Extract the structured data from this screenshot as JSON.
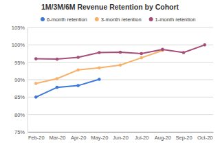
{
  "chart_data": {
    "type": "line",
    "title": "1M/3M/6M Revenue Retention by Cohort",
    "categories": [
      "Feb-20",
      "Mar-20",
      "Apr-20",
      "May-20",
      "Jun-20",
      "Jul-20",
      "Aug-20",
      "Sep-20",
      "Oct-20"
    ],
    "series": [
      {
        "name": "6-month retention",
        "color": "#3c78d8",
        "marker": "circle",
        "values": [
          85,
          87.8,
          88.3,
          90.1,
          null,
          null,
          null,
          null,
          null
        ]
      },
      {
        "name": "3-month retention",
        "color": "#f6b26b",
        "marker": "circle",
        "values": [
          88.9,
          90.3,
          92.8,
          93.4,
          94.2,
          96.3,
          98.4,
          null,
          null
        ]
      },
      {
        "name": "1-month retention",
        "color": "#a64d79",
        "marker": "circle",
        "values": [
          96,
          95.9,
          96.4,
          97.8,
          97.9,
          97.5,
          98.7,
          97.8,
          100
        ]
      }
    ],
    "ylim": [
      75,
      105
    ],
    "yticks": [
      {
        "value": 75,
        "label": "75%"
      },
      {
        "value": 80,
        "label": "80%"
      },
      {
        "value": 85,
        "label": "85%"
      },
      {
        "value": 90,
        "label": "90%"
      },
      {
        "value": 95,
        "label": "95%"
      },
      {
        "value": 100,
        "label": "100%"
      },
      {
        "value": 105,
        "label": "105%"
      }
    ],
    "grid": true,
    "legend": "top"
  }
}
